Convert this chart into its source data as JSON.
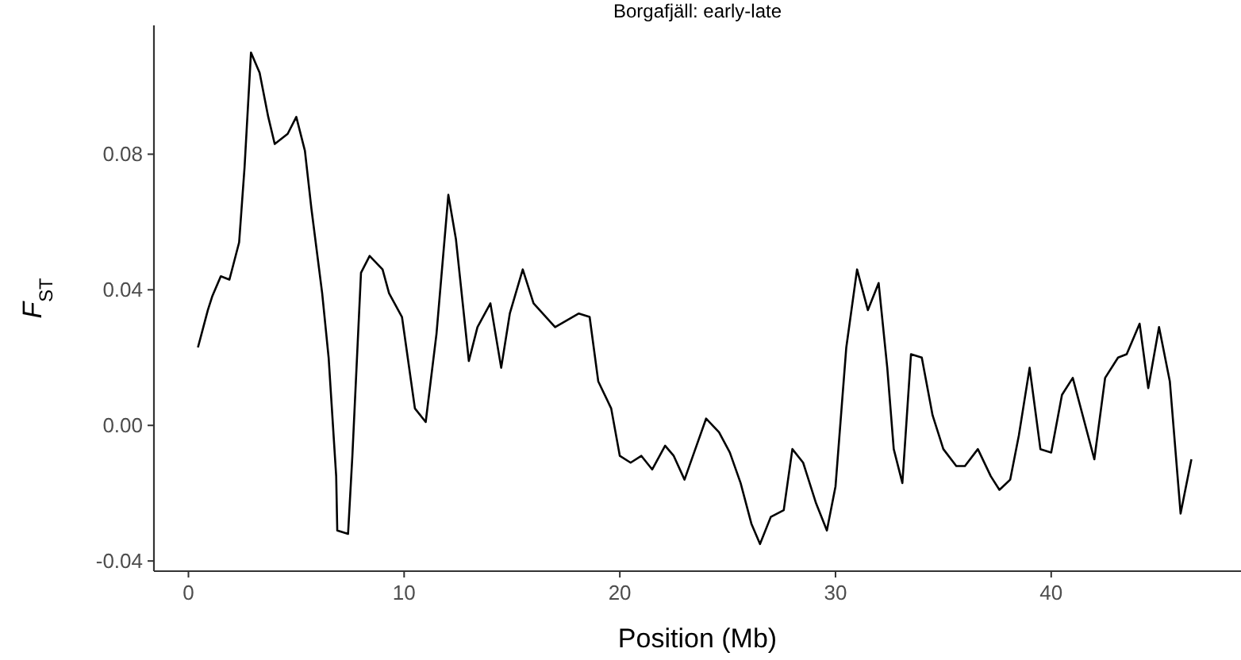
{
  "chart_data": {
    "type": "line",
    "title": "Borgafjäll: early-late",
    "xlabel": "Position (Mb)",
    "ylabel": "F$_{ST}$",
    "xlim": [
      -1.6,
      48.8
    ],
    "ylim": [
      -0.043,
      0.118
    ],
    "xticks": [
      0,
      10,
      20,
      30,
      40
    ],
    "yticks": [
      {
        "value": -0.04,
        "label": "-0.04"
      },
      {
        "value": 0,
        "label": "0.00"
      },
      {
        "value": 0.04,
        "label": "0.04"
      },
      {
        "value": 0.08,
        "label": "0.08"
      }
    ],
    "grid": false,
    "series": [
      {
        "color": "#000000",
        "x": [
          0.44,
          0.9,
          1.1,
          1.5,
          1.9,
          2.35,
          2.6,
          2.9,
          3.3,
          3.7,
          4.0,
          4.6,
          5.0,
          5.4,
          5.7,
          6.2,
          6.5,
          6.85,
          6.9,
          7.4,
          7.6,
          7.8,
          8.0,
          8.4,
          9.0,
          9.3,
          9.9,
          10.5,
          11.0,
          11.5,
          12.05,
          12.4,
          13.0,
          13.4,
          14.0,
          14.5,
          14.9,
          15.5,
          16.0,
          17.0,
          18.1,
          18.6,
          19.0,
          19.6,
          20.0,
          20.5,
          21.0,
          21.5,
          22.1,
          22.5,
          23.0,
          23.5,
          24.0,
          24.6,
          25.1,
          25.6,
          26.1,
          26.5,
          27.0,
          27.6,
          28.0,
          28.5,
          29.1,
          29.6,
          30.0,
          30.5,
          31.0,
          31.5,
          32.0,
          32.4,
          32.7,
          33.1,
          33.5,
          34.0,
          34.5,
          35.0,
          35.6,
          36.0,
          36.6,
          37.2,
          37.6,
          38.1,
          38.5,
          39.0,
          39.5,
          40.0,
          40.5,
          41.0,
          42.0,
          42.5,
          43.1,
          43.5,
          44.1,
          44.5,
          45.0,
          45.5,
          46.0,
          46.5
        ],
        "values": [
          0.023,
          0.034,
          0.038,
          0.044,
          0.043,
          0.054,
          0.076,
          0.11,
          0.104,
          0.091,
          0.083,
          0.086,
          0.091,
          0.081,
          0.064,
          0.039,
          0.02,
          -0.015,
          -0.031,
          -0.032,
          -0.009,
          0.018,
          0.045,
          0.05,
          0.046,
          0.039,
          0.032,
          0.005,
          0.001,
          0.027,
          0.068,
          0.055,
          0.019,
          0.029,
          0.036,
          0.017,
          0.033,
          0.046,
          0.036,
          0.029,
          0.033,
          0.032,
          0.013,
          0.005,
          -0.009,
          -0.011,
          -0.009,
          -0.013,
          -0.006,
          -0.009,
          -0.016,
          -0.007,
          0.002,
          -0.002,
          -0.008,
          -0.017,
          -0.029,
          -0.035,
          -0.027,
          -0.025,
          -0.007,
          -0.011,
          -0.023,
          -0.031,
          -0.018,
          0.023,
          0.046,
          0.034,
          0.042,
          0.017,
          -0.007,
          -0.017,
          0.021,
          0.02,
          0.003,
          -0.007,
          -0.012,
          -0.012,
          -0.007,
          -0.015,
          -0.019,
          -0.016,
          -0.003,
          0.017,
          -0.007,
          -0.008,
          0.009,
          0.014,
          -0.01,
          0.014,
          0.02,
          0.021,
          0.03,
          0.011,
          0.029,
          0.013,
          -0.026,
          -0.01
        ]
      }
    ]
  }
}
